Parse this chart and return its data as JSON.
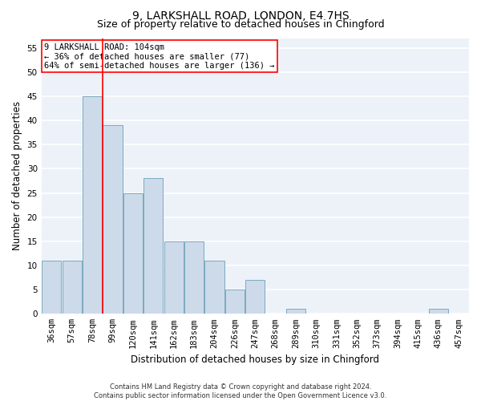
{
  "title1": "9, LARKSHALL ROAD, LONDON, E4 7HS",
  "title2": "Size of property relative to detached houses in Chingford",
  "xlabel": "Distribution of detached houses by size in Chingford",
  "ylabel": "Number of detached properties",
  "categories": [
    "36sqm",
    "57sqm",
    "78sqm",
    "99sqm",
    "120sqm",
    "141sqm",
    "162sqm",
    "183sqm",
    "204sqm",
    "226sqm",
    "247sqm",
    "268sqm",
    "289sqm",
    "310sqm",
    "331sqm",
    "352sqm",
    "373sqm",
    "394sqm",
    "415sqm",
    "436sqm",
    "457sqm"
  ],
  "values": [
    11,
    11,
    45,
    39,
    25,
    28,
    15,
    15,
    11,
    5,
    7,
    0,
    1,
    0,
    0,
    0,
    0,
    0,
    0,
    1,
    0
  ],
  "bar_color": "#cddaea",
  "bar_edge_color": "#7aaabf",
  "vline_color": "red",
  "vline_pos": 2.5,
  "annotation_text": "9 LARKSHALL ROAD: 104sqm\n← 36% of detached houses are smaller (77)\n64% of semi-detached houses are larger (136) →",
  "annotation_box_color": "white",
  "annotation_box_edge": "red",
  "ylim": [
    0,
    57
  ],
  "yticks": [
    0,
    5,
    10,
    15,
    20,
    25,
    30,
    35,
    40,
    45,
    50,
    55
  ],
  "footer": "Contains HM Land Registry data © Crown copyright and database right 2024.\nContains public sector information licensed under the Open Government Licence v3.0.",
  "bg_color": "#edf2f9",
  "grid_color": "white",
  "title_fontsize": 10,
  "subtitle_fontsize": 9,
  "tick_fontsize": 7.5,
  "ylabel_fontsize": 8.5,
  "xlabel_fontsize": 8.5,
  "annotation_fontsize": 7.5,
  "footer_fontsize": 6
}
